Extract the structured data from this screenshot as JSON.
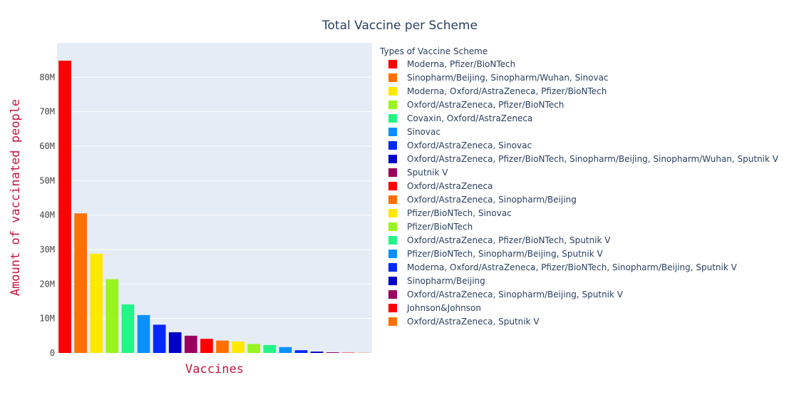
{
  "chart_data": {
    "type": "bar",
    "title": "Total Vaccine per Scheme",
    "xlabel": "Vaccines",
    "ylabel": "Amount of vaccinated people",
    "ylim": [
      0,
      90000000
    ],
    "yticks": [
      0,
      10000000,
      20000000,
      30000000,
      40000000,
      50000000,
      60000000,
      70000000,
      80000000
    ],
    "ytick_labels": [
      "0",
      "10M",
      "20M",
      "30M",
      "40M",
      "50M",
      "60M",
      "70M",
      "80M"
    ],
    "grid": true,
    "legend_title": "Types of Vaccine Scheme",
    "legend_position": "right",
    "series": [
      {
        "name": "Moderna, Pfizer/BioNTech",
        "value": 84800000,
        "color": "#ff0000"
      },
      {
        "name": "Sinopharm/Beijing, Sinopharm/Wuhan, Sinovac",
        "value": 40500000,
        "color": "#ff7000"
      },
      {
        "name": "Moderna, Oxford/AstraZeneca, Pfizer/BioNTech",
        "value": 28800000,
        "color": "#ffe800"
      },
      {
        "name": "Oxford/AstraZeneca, Pfizer/BioNTech",
        "value": 21400000,
        "color": "#98f41e"
      },
      {
        "name": "Covaxin, Oxford/AstraZeneca",
        "value": 14100000,
        "color": "#23f586"
      },
      {
        "name": "Sinovac",
        "value": 11000000,
        "color": "#0a91ff"
      },
      {
        "name": "Oxford/AstraZeneca, Sinovac",
        "value": 8200000,
        "color": "#0028ff"
      },
      {
        "name": "Oxford/AstraZeneca, Pfizer/BioNTech, Sinopharm/Beijing, Sinopharm/Wuhan, Sputnik V",
        "value": 6000000,
        "color": "#0000c8"
      },
      {
        "name": "Sputnik V",
        "value": 5000000,
        "color": "#9b005f"
      },
      {
        "name": "Oxford/AstraZeneca",
        "value": 4100000,
        "color": "#ff0000"
      },
      {
        "name": "Oxford/AstraZeneca, Sinopharm/Beijing",
        "value": 3600000,
        "color": "#ff7000"
      },
      {
        "name": "Pfizer/BioNTech, Sinovac",
        "value": 3300000,
        "color": "#ffe800"
      },
      {
        "name": "Pfizer/BioNTech",
        "value": 2600000,
        "color": "#98f41e"
      },
      {
        "name": "Oxford/AstraZeneca, Pfizer/BioNTech, Sputnik V",
        "value": 2300000,
        "color": "#23f586"
      },
      {
        "name": "Pfizer/BioNTech, Sinopharm/Beijing, Sputnik V",
        "value": 1700000,
        "color": "#0a91ff"
      },
      {
        "name": "Moderna, Oxford/AstraZeneca, Pfizer/BioNTech, Sinopharm/Beijing, Sputnik V",
        "value": 800000,
        "color": "#0028ff"
      },
      {
        "name": "Sinopharm/Beijing",
        "value": 400000,
        "color": "#0000c8"
      },
      {
        "name": "Oxford/AstraZeneca, Sinopharm/Beijing, Sputnik V",
        "value": 200000,
        "color": "#9b005f"
      },
      {
        "name": "Johnson&Johnson",
        "value": 100000,
        "color": "#ff0000"
      },
      {
        "name": "Oxford/AstraZeneca, Sputnik V",
        "value": 60000,
        "color": "#ff7000"
      }
    ]
  }
}
